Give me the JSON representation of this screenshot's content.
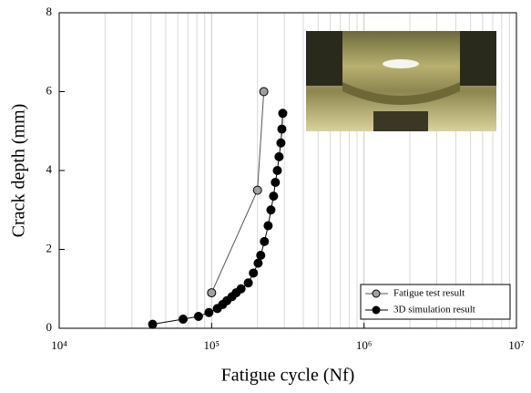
{
  "chart_data": {
    "type": "line",
    "xlabel": "Fatigue cycle (Nf)",
    "ylabel": "Crack depth (mm)",
    "xscale": "log",
    "xlim": [
      10000,
      10000000
    ],
    "ylim": [
      0,
      8
    ],
    "xticks": [
      {
        "value": 10000,
        "label": "10⁴"
      },
      {
        "value": 100000,
        "label": "10⁵"
      },
      {
        "value": 1000000,
        "label": "10⁶"
      },
      {
        "value": 10000000,
        "label": "10⁷"
      }
    ],
    "yticks": [
      0,
      2,
      4,
      6,
      8
    ],
    "grid": true,
    "legend": "lower right",
    "series": [
      {
        "name": "Fatigue test result",
        "color": "#a0a0a0",
        "line_color": "#555555",
        "x": [
          100000,
          200000,
          220000
        ],
        "values": [
          0.9,
          3.5,
          6.0
        ]
      },
      {
        "name": "3D simulation result",
        "color": "#000000",
        "line_color": "#000000",
        "x": [
          41000,
          65000,
          82000,
          96000,
          109000,
          118000,
          126000,
          136000,
          145000,
          156000,
          174000,
          188000,
          202000,
          210000,
          222000,
          235000,
          245000,
          255000,
          262000,
          270000,
          277000,
          285000,
          289000,
          293000
        ],
        "values": [
          0.1,
          0.23,
          0.3,
          0.4,
          0.5,
          0.6,
          0.7,
          0.8,
          0.9,
          1.0,
          1.15,
          1.4,
          1.65,
          1.85,
          2.2,
          2.6,
          3.0,
          3.35,
          3.7,
          4.0,
          4.35,
          4.7,
          5.05,
          5.45
        ]
      }
    ]
  }
}
